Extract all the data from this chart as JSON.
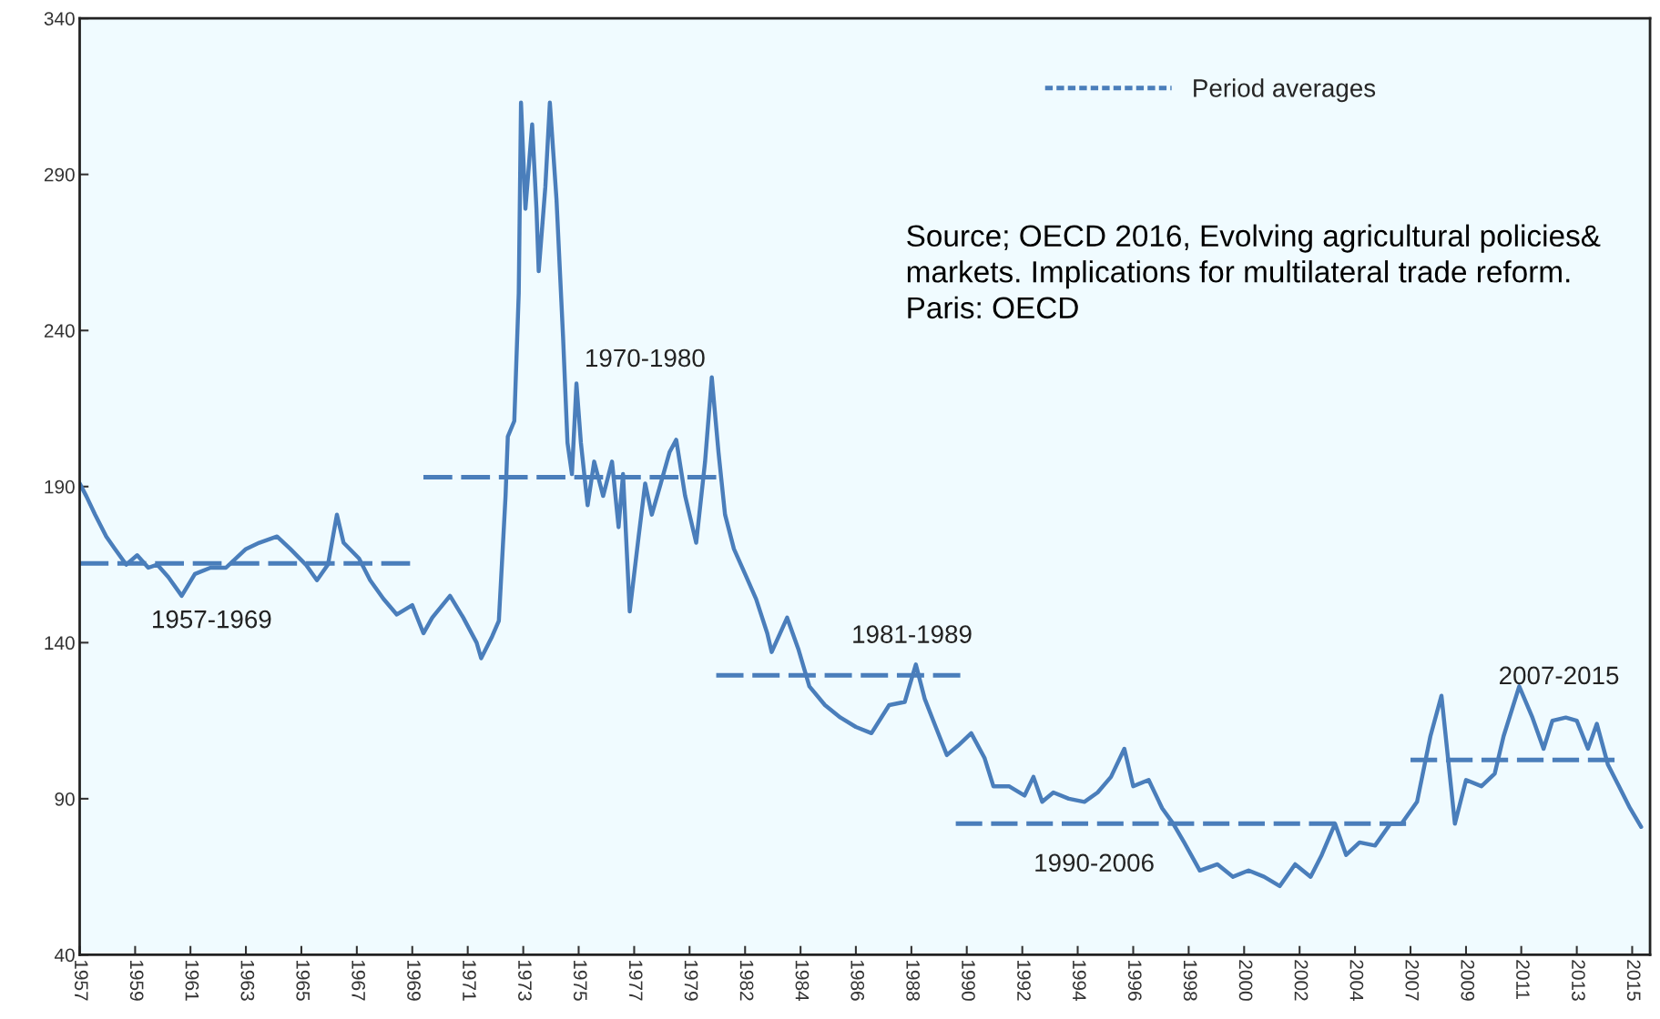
{
  "chart_data": {
    "type": "line",
    "xlim": [
      "1957-01",
      "2016-01"
    ],
    "ylim": [
      40,
      340
    ],
    "yticks": [
      40,
      90,
      140,
      190,
      240,
      290,
      340
    ],
    "xticks": [
      {
        "value": "1957-01",
        "label": "1957"
      },
      {
        "value": "1959-02",
        "label": "1959"
      },
      {
        "value": "1961-03",
        "label": "1961"
      },
      {
        "value": "1963-04",
        "label": "1963"
      },
      {
        "value": "1965-05",
        "label": "1965"
      },
      {
        "value": "1967-06",
        "label": "1967"
      },
      {
        "value": "1969-07",
        "label": "1969"
      },
      {
        "value": "1971-08",
        "label": "1971"
      },
      {
        "value": "1973-09",
        "label": "1973"
      },
      {
        "value": "1975-10",
        "label": "1975"
      },
      {
        "value": "1977-11",
        "label": "1977"
      },
      {
        "value": "1979-12",
        "label": "1979"
      },
      {
        "value": "1982-01",
        "label": "1982"
      },
      {
        "value": "1984-02",
        "label": "1984"
      },
      {
        "value": "1986-03",
        "label": "1986"
      },
      {
        "value": "1988-04",
        "label": "1988"
      },
      {
        "value": "1990-05",
        "label": "1990"
      },
      {
        "value": "1992-06",
        "label": "1992"
      },
      {
        "value": "1994-07",
        "label": "1994"
      },
      {
        "value": "1996-08",
        "label": "1996"
      },
      {
        "value": "1998-09",
        "label": "1998"
      },
      {
        "value": "2000-10",
        "label": "2000"
      },
      {
        "value": "2002-11",
        "label": "2002"
      },
      {
        "value": "2004-12",
        "label": "2004"
      },
      {
        "value": "2007-01",
        "label": "2007"
      },
      {
        "value": "2009-02",
        "label": "2009"
      },
      {
        "value": "2011-03",
        "label": "2011"
      },
      {
        "value": "2013-04",
        "label": "2013"
      },
      {
        "value": "2015-05",
        "label": "2015"
      }
    ],
    "grid": false,
    "legend": "top right",
    "marker": "none",
    "series": [
      {
        "color": "#4a7ebb",
        "line_style": "solid",
        "x": [
          "1957-01",
          "1957-04",
          "1957-08",
          "1958-01",
          "1958-05",
          "1958-10",
          "1959-03",
          "1959-08",
          "1959-12",
          "1960-05",
          "1960-11",
          "1961-05",
          "1961-12",
          "1962-07",
          "1963-04",
          "1963-10",
          "1964-06",
          "1964-12",
          "1965-07",
          "1965-12",
          "1966-05",
          "1966-09",
          "1966-12",
          "1967-07",
          "1967-12",
          "1968-06",
          "1968-12",
          "1969-07",
          "1969-12",
          "1970-04",
          "1970-12",
          "1971-06",
          "1971-12",
          "1972-02",
          "1972-07",
          "1972-10",
          "1973-01",
          "1973-02",
          "1973-05",
          "1973-07",
          "1973-08",
          "1973-10",
          "1974-01",
          "1974-03",
          "1974-04",
          "1974-07",
          "1974-09",
          "1974-12",
          "1975-03",
          "1975-05",
          "1975-07",
          "1975-09",
          "1975-11",
          "1976-02",
          "1976-05",
          "1976-09",
          "1977-01",
          "1977-04",
          "1977-06",
          "1977-09",
          "1978-01",
          "1978-04",
          "1978-07",
          "1978-11",
          "1979-03",
          "1979-06",
          "1979-10",
          "1980-03",
          "1980-07",
          "1980-10",
          "1981-01",
          "1981-04",
          "1981-08",
          "1982-01",
          "1982-06",
          "1982-11",
          "1983-01",
          "1983-08",
          "1984-01",
          "1984-06",
          "1985-01",
          "1985-08",
          "1986-03",
          "1986-10",
          "1987-06",
          "1988-01",
          "1988-06",
          "1988-10",
          "1989-03",
          "1989-08",
          "1990-01",
          "1990-07",
          "1991-01",
          "1991-05",
          "1991-12",
          "1992-07",
          "1992-11",
          "1993-03",
          "1993-08",
          "1994-03",
          "1994-10",
          "1995-04",
          "1995-10",
          "1996-04",
          "1996-08",
          "1997-03",
          "1997-09",
          "1998-02",
          "1998-07",
          "1999-02",
          "1999-10",
          "2000-05",
          "2000-12",
          "2001-07",
          "2002-02",
          "2002-09",
          "2003-04",
          "2003-09",
          "2004-03",
          "2004-08",
          "2005-02",
          "2005-09",
          "2006-04",
          "2006-09",
          "2007-04",
          "2007-10",
          "2008-03",
          "2008-09",
          "2009-02",
          "2009-09",
          "2010-03",
          "2010-07",
          "2011-02",
          "2011-08",
          "2012-01",
          "2012-05",
          "2012-11",
          "2013-04",
          "2013-09",
          "2014-01",
          "2014-06",
          "2014-11",
          "2015-04",
          "2015-09"
        ],
        "values": [
          191,
          187,
          181,
          174,
          170,
          165,
          168,
          164,
          165,
          161,
          155,
          162,
          164,
          164,
          170,
          172,
          174,
          170,
          165,
          160,
          165,
          181,
          172,
          167,
          160,
          154,
          149,
          152,
          143,
          148,
          155,
          148,
          140,
          135,
          142,
          147,
          187,
          206,
          211,
          252,
          313,
          279,
          306,
          279,
          259,
          286,
          313,
          282,
          238,
          204,
          194,
          223,
          204,
          184,
          198,
          187,
          198,
          177,
          194,
          150,
          174,
          191,
          181,
          191,
          201,
          205,
          187,
          172,
          198,
          225,
          201,
          181,
          170,
          162,
          154,
          143,
          137,
          148,
          138,
          126,
          120,
          116,
          113,
          111,
          120,
          121,
          133,
          122,
          113,
          104,
          107,
          111,
          103,
          94,
          94,
          91,
          97,
          89,
          92,
          90,
          89,
          92,
          97,
          106,
          94,
          96,
          87,
          82,
          76,
          67,
          69,
          65,
          67,
          65,
          62,
          69,
          65,
          72,
          82,
          72,
          76,
          75,
          82,
          82,
          89,
          110,
          123,
          82,
          96,
          94,
          98,
          110,
          126,
          116,
          106,
          115,
          116,
          115,
          106,
          114,
          101,
          94,
          87,
          81
        ]
      },
      {
        "name": "Period averages",
        "color": "#4a7ebb",
        "line_style": "dashed",
        "x": [
          "1957-01",
          "1969-06"
        ],
        "values": [
          165.4,
          165.4
        ]
      },
      {
        "color": "#4a7ebb",
        "line_style": "dashed",
        "x": [
          "1969-12",
          "1980-12"
        ],
        "values": [
          193,
          193
        ]
      },
      {
        "color": "#4a7ebb",
        "line_style": "dashed",
        "x": [
          "1980-12",
          "1990-02"
        ],
        "values": [
          129.5,
          129.5
        ]
      },
      {
        "color": "#4a7ebb",
        "line_style": "dashed",
        "x": [
          "1989-12",
          "2006-11"
        ],
        "values": [
          82,
          82
        ]
      },
      {
        "color": "#4a7ebb",
        "line_style": "dashed",
        "x": [
          "2007-01",
          "2014-09"
        ],
        "values": [
          102.4,
          102.4
        ]
      }
    ],
    "annotations": [
      "1957-1969",
      "1970-1980",
      "1981-1989",
      "1990-2006",
      "2007-2015",
      "Source; OECD 2016, Evolving agricultural policies& markets. Implications for multilateral trade reform. Paris: OECD"
    ]
  }
}
